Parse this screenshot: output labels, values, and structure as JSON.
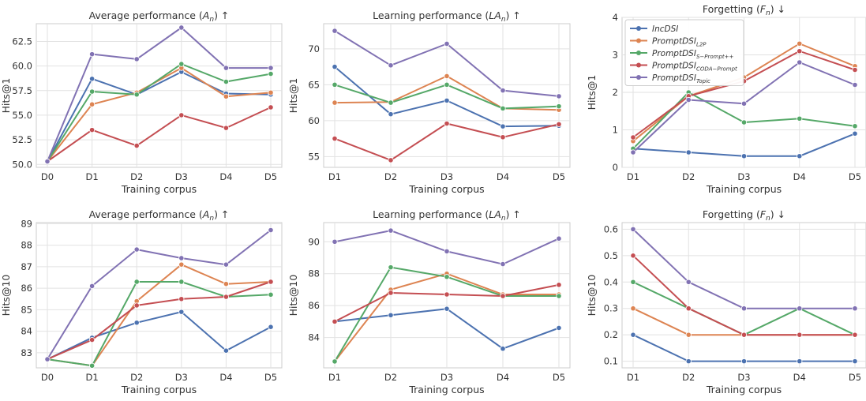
{
  "series_meta": [
    {
      "name": "IncDSI",
      "color": "#4c72b0"
    },
    {
      "name": "PromptDSI_L2P",
      "color": "#dd8452"
    },
    {
      "name": "PromptDSI_S-Prompt++",
      "color": "#55a868"
    },
    {
      "name": "PromptDSI_CODA-Prompt",
      "color": "#c44e52"
    },
    {
      "name": "PromptDSI_Topic",
      "color": "#8172b3"
    }
  ],
  "legend": {
    "labels": [
      {
        "base": "IncDSI",
        "sub": ""
      },
      {
        "base": "PromptDSI",
        "sub": "L2P"
      },
      {
        "base": "PromptDSI",
        "sub": "S−Prompt++"
      },
      {
        "base": "PromptDSI",
        "sub": "CODA−Prompt"
      },
      {
        "base": "PromptDSI",
        "sub": "Topic"
      }
    ]
  },
  "chart_data": [
    {
      "type": "line",
      "title": "Average performance (A_n) ↑",
      "title_parts": {
        "pre": "Average performance (",
        "var": "A",
        "sub": "n",
        "post": ") ↑"
      },
      "xlabel": "Training corpus",
      "ylabel": "Hits@1",
      "x": [
        "D0",
        "D1",
        "D2",
        "D3",
        "D4",
        "D5"
      ],
      "ylim": [
        49.7,
        64.3
      ],
      "yticks": [
        50.0,
        52.5,
        55.0,
        57.5,
        60.0,
        62.5
      ],
      "ytick_labels": [
        "50.0",
        "52.5",
        "55.0",
        "57.5",
        "60.0",
        "62.5"
      ],
      "grid": true,
      "series": [
        {
          "values": [
            50.3,
            58.7,
            57.1,
            59.4,
            57.2,
            57.1
          ]
        },
        {
          "values": [
            50.3,
            56.1,
            57.3,
            59.8,
            56.9,
            57.3
          ]
        },
        {
          "values": [
            50.3,
            57.4,
            57.1,
            60.2,
            58.4,
            59.2
          ]
        },
        {
          "values": [
            50.3,
            53.5,
            51.9,
            55.0,
            53.7,
            55.8
          ]
        },
        {
          "values": [
            50.3,
            61.2,
            60.7,
            63.9,
            59.8,
            59.8
          ]
        }
      ]
    },
    {
      "type": "line",
      "title": "Learning performance (LA_n) ↑",
      "title_parts": {
        "pre": "Learning performance (",
        "var": "LA",
        "sub": "n",
        "post": ") ↑"
      },
      "xlabel": "Training corpus",
      "ylabel": "Hits@1",
      "x": [
        "D1",
        "D2",
        "D3",
        "D4",
        "D5"
      ],
      "ylim": [
        53.5,
        73.5
      ],
      "yticks": [
        55,
        60,
        65,
        70
      ],
      "ytick_labels": [
        "55",
        "60",
        "65",
        "70"
      ],
      "grid": true,
      "series": [
        {
          "values": [
            67.5,
            60.9,
            62.8,
            59.2,
            59.3
          ]
        },
        {
          "values": [
            62.5,
            62.6,
            66.2,
            61.7,
            61.5
          ]
        },
        {
          "values": [
            65.0,
            62.5,
            65.0,
            61.7,
            62.0
          ]
        },
        {
          "values": [
            57.5,
            54.5,
            59.6,
            57.7,
            59.5
          ]
        },
        {
          "values": [
            72.5,
            67.7,
            70.7,
            64.2,
            63.4
          ]
        }
      ]
    },
    {
      "type": "line",
      "title": "Forgetting (F_n) ↓",
      "title_parts": {
        "pre": "Forgetting (",
        "var": "F",
        "sub": "n",
        "post": ") ↓"
      },
      "xlabel": "Training corpus",
      "ylabel": "Hits@1",
      "x": [
        "D1",
        "D2",
        "D3",
        "D4",
        "D5"
      ],
      "ylim": [
        0,
        4
      ],
      "yticks": [
        0,
        1,
        2,
        3,
        4
      ],
      "ytick_labels": [
        "0",
        "1",
        "2",
        "3",
        "4"
      ],
      "grid": true,
      "legend": "upper-left",
      "series": [
        {
          "values": [
            0.5,
            0.4,
            0.3,
            0.3,
            0.9
          ]
        },
        {
          "values": [
            0.7,
            1.9,
            2.4,
            3.3,
            2.7
          ]
        },
        {
          "values": [
            0.5,
            2.0,
            1.2,
            1.3,
            1.1
          ]
        },
        {
          "values": [
            0.8,
            1.9,
            2.3,
            3.1,
            2.6
          ]
        },
        {
          "values": [
            0.4,
            1.8,
            1.7,
            2.8,
            2.2
          ]
        }
      ]
    },
    {
      "type": "line",
      "title": "Average performance (A_n) ↑",
      "title_parts": {
        "pre": "Average performance (",
        "var": "A",
        "sub": "n",
        "post": ") ↑"
      },
      "xlabel": "Training corpus",
      "ylabel": "Hits@10",
      "x": [
        "D0",
        "D1",
        "D2",
        "D3",
        "D4",
        "D5"
      ],
      "ylim": [
        82.3,
        89.05
      ],
      "yticks": [
        83,
        84,
        85,
        86,
        87,
        88,
        89
      ],
      "ytick_labels": [
        "83",
        "84",
        "85",
        "86",
        "87",
        "88",
        "89"
      ],
      "grid": true,
      "series": [
        {
          "values": [
            82.7,
            83.7,
            84.4,
            84.9,
            83.1,
            84.2
          ]
        },
        {
          "values": [
            82.7,
            82.4,
            85.4,
            87.1,
            86.2,
            86.3
          ]
        },
        {
          "values": [
            82.7,
            82.4,
            86.3,
            86.3,
            85.6,
            85.7
          ]
        },
        {
          "values": [
            82.7,
            83.6,
            85.2,
            85.5,
            85.6,
            86.3
          ]
        },
        {
          "values": [
            82.7,
            86.1,
            87.8,
            87.4,
            87.1,
            88.7
          ]
        }
      ]
    },
    {
      "type": "line",
      "title": "Learning performance (LA_n) ↑",
      "title_parts": {
        "pre": "Learning performance (",
        "var": "LA",
        "sub": "n",
        "post": ") ↑"
      },
      "xlabel": "Training corpus",
      "ylabel": "Hits@10",
      "x": [
        "D1",
        "D2",
        "D3",
        "D4",
        "D5"
      ],
      "ylim": [
        82.1,
        91.2
      ],
      "yticks": [
        84,
        86,
        88,
        90
      ],
      "ytick_labels": [
        "84",
        "86",
        "88",
        "90"
      ],
      "grid": true,
      "series": [
        {
          "values": [
            85.0,
            85.4,
            85.8,
            83.3,
            84.6
          ]
        },
        {
          "values": [
            82.5,
            87.0,
            88.0,
            86.7,
            86.7
          ]
        },
        {
          "values": [
            82.5,
            88.4,
            87.8,
            86.6,
            86.6
          ]
        },
        {
          "values": [
            85.0,
            86.8,
            86.7,
            86.6,
            87.3
          ]
        },
        {
          "values": [
            90.0,
            90.7,
            89.4,
            88.6,
            90.2
          ]
        }
      ]
    },
    {
      "type": "line",
      "title": "Forgetting (F_n) ↓",
      "title_parts": {
        "pre": "Forgetting (",
        "var": "F",
        "sub": "n",
        "post": ") ↓"
      },
      "xlabel": "Training corpus",
      "ylabel": "Hits@10",
      "x": [
        "D1",
        "D2",
        "D3",
        "D4",
        "D5"
      ],
      "ylim": [
        0.075,
        0.625
      ],
      "yticks": [
        0.1,
        0.2,
        0.3,
        0.4,
        0.5,
        0.6
      ],
      "ytick_labels": [
        "0.1",
        "0.2",
        "0.3",
        "0.4",
        "0.5",
        "0.6"
      ],
      "grid": true,
      "series": [
        {
          "values": [
            0.2,
            0.1,
            0.1,
            0.1,
            0.1
          ]
        },
        {
          "values": [
            0.3,
            0.2,
            0.2,
            0.2,
            0.2
          ]
        },
        {
          "values": [
            0.4,
            0.3,
            0.2,
            0.3,
            0.2
          ]
        },
        {
          "values": [
            0.5,
            0.3,
            0.2,
            0.2,
            0.2
          ]
        },
        {
          "values": [
            0.6,
            0.4,
            0.3,
            0.3,
            0.3
          ]
        }
      ]
    }
  ]
}
